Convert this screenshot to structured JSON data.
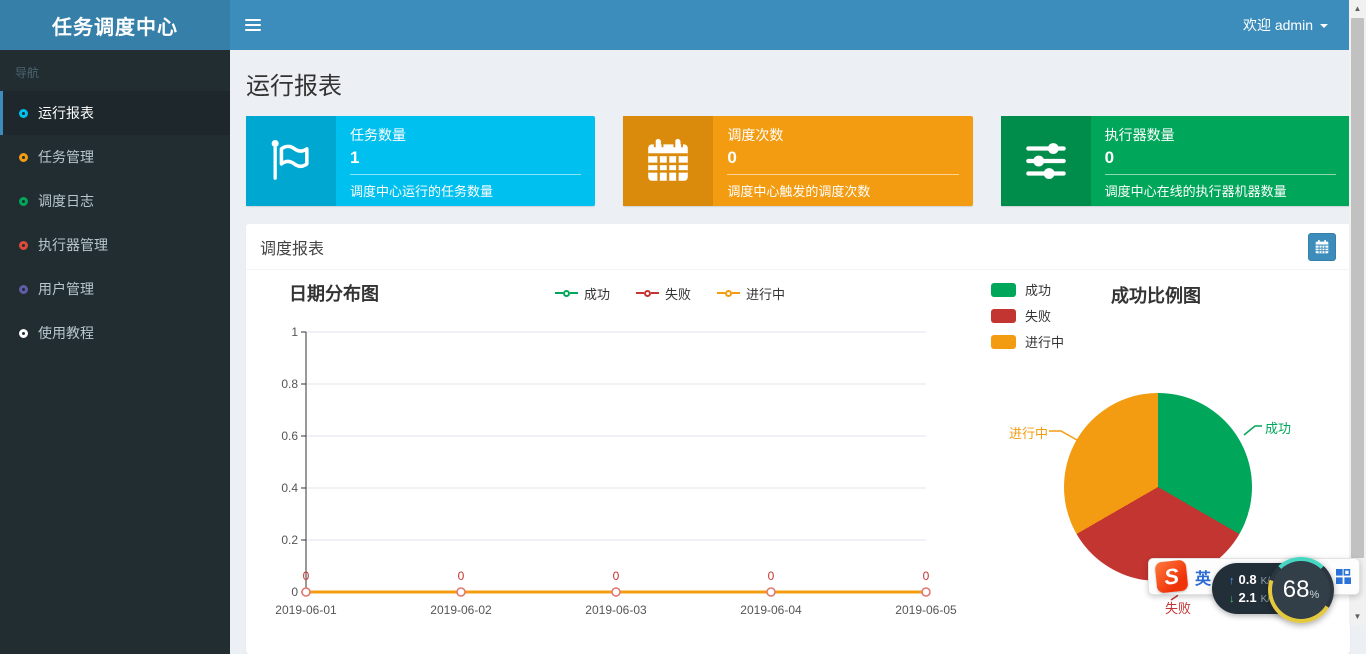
{
  "navbar": {
    "title": "任务调度中心",
    "welcome": "欢迎 admin"
  },
  "sidebar": {
    "section_label": "导航",
    "items": [
      {
        "label": "运行报表",
        "color": "#00c0ef",
        "active": true
      },
      {
        "label": "任务管理",
        "color": "#f39c12",
        "active": false
      },
      {
        "label": "调度日志",
        "color": "#00a65a",
        "active": false
      },
      {
        "label": "执行器管理",
        "color": "#dd4b39",
        "active": false
      },
      {
        "label": "用户管理",
        "color": "#605ca8",
        "active": false
      },
      {
        "label": "使用教程",
        "color": "#ffffff",
        "active": false
      }
    ]
  },
  "page": {
    "title": "运行报表"
  },
  "stats": [
    {
      "label": "任务数量",
      "value": "1",
      "desc": "调度中心运行的任务数量",
      "bg": "#00c0ef",
      "icon_bg": "#00a7d0",
      "icon": "flag-icon"
    },
    {
      "label": "调度次数",
      "value": "0",
      "desc": "调度中心触发的调度次数",
      "bg": "#f39c12",
      "icon_bg": "#db8b0b",
      "icon": "calendar-icon"
    },
    {
      "label": "执行器数量",
      "value": "0",
      "desc": "调度中心在线的执行器机器数量",
      "bg": "#00a65a",
      "icon_bg": "#008d4c",
      "icon": "sliders-icon"
    }
  ],
  "panel": {
    "title": "调度报表",
    "button_icon": "calendar-icon",
    "button_color": "#3c8dbc"
  },
  "chart_data": [
    {
      "type": "line",
      "title": "日期分布图",
      "x": [
        "2019-06-01",
        "2019-06-02",
        "2019-06-03",
        "2019-06-04",
        "2019-06-05"
      ],
      "series": [
        {
          "name": "成功",
          "color": "#00A65A",
          "values": [
            0,
            0,
            0,
            0,
            0
          ]
        },
        {
          "name": "失败",
          "color": "#C23531",
          "values": [
            0,
            0,
            0,
            0,
            0
          ]
        },
        {
          "name": "进行中",
          "color": "#F39C12",
          "values": [
            0,
            0,
            0,
            0,
            0
          ]
        }
      ],
      "ylim": [
        0,
        1
      ],
      "yticks": [
        0,
        0.2,
        0.4,
        0.6,
        0.8,
        1
      ],
      "grid": true,
      "legend_position": "top",
      "label_color": "#c23531",
      "marker_stroke": "#e0756f"
    },
    {
      "type": "pie",
      "title": "成功比例图",
      "legend_position": "left-top",
      "slices": [
        {
          "name": "成功",
          "value": 1,
          "color": "#00A65A"
        },
        {
          "name": "失败",
          "value": 1,
          "color": "#C23531"
        },
        {
          "name": "进行中",
          "value": 1,
          "color": "#F39C12"
        }
      ]
    }
  ],
  "overlay": {
    "ime_lang": "英",
    "net_up": "0.8",
    "net_up_unit": "K/s",
    "net_down": "2.1",
    "net_down_unit": "K/s",
    "percent": "68",
    "percent_unit": "%"
  }
}
